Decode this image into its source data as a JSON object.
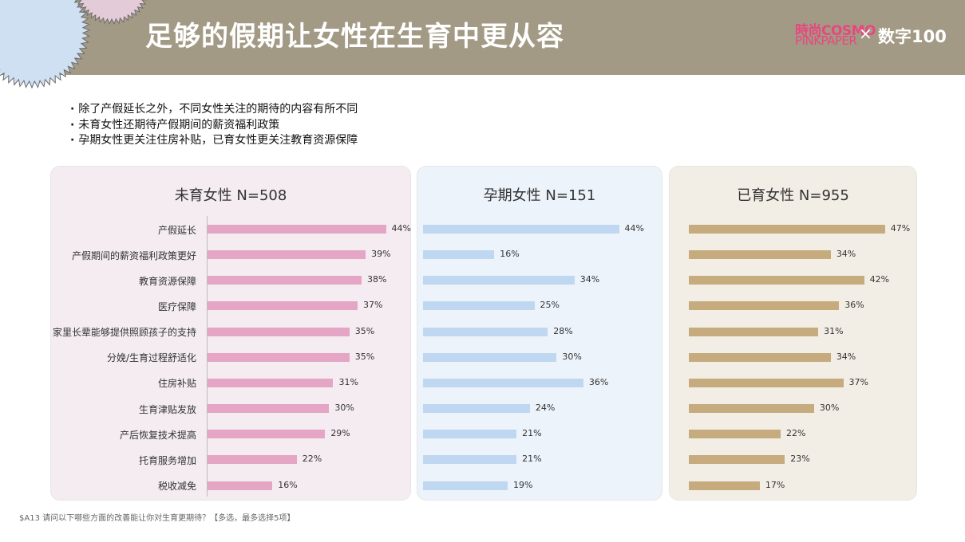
{
  "header": {
    "title": "足够的假期让女性在生育中更从容",
    "brand_cosmo_top": "時尚COSMO",
    "brand_cosmo_bottom": "PINKPAPER",
    "brand_times": "×",
    "brand_digit": "数字100"
  },
  "bullets": [
    "除了产假延长之外，不同女性关注的期待的内容有所不同",
    "未育女性还期待产假期间的薪资福利政策",
    "孕期女性更关注住房补贴，已育女性更关注教育资源保障"
  ],
  "footnote": "$A13 请问以下哪些方面的改善能让你对生育更期待？【多选，最多选择5项】",
  "colors": {
    "header_bg": "#a39a86",
    "panel_bgs": [
      "#f4ecf0",
      "#edf3fb",
      "#f3eee5"
    ],
    "bar_colors": [
      "#e5a6c6",
      "#bfd7f0",
      "#c6ab7f"
    ]
  },
  "chart_data": [
    {
      "type": "bar",
      "orientation": "horizontal",
      "title": "未育女性 N=508",
      "categories": [
        "产假延长",
        "产假期间的薪资福利政策更好",
        "教育资源保障",
        "医疗保障",
        "家里长辈能够提供照顾孩子的支持",
        "分娩/生育过程舒适化",
        "住房补贴",
        "生育津贴发放",
        "产后恢复技术提高",
        "托育服务增加",
        "税收减免"
      ],
      "values": [
        44,
        39,
        38,
        37,
        35,
        35,
        31,
        30,
        29,
        22,
        16
      ],
      "value_labels": [
        "44%",
        "39%",
        "38%",
        "37%",
        "35%",
        "35%",
        "31%",
        "30%",
        "29%",
        "22%",
        "16%"
      ],
      "unit": "%"
    },
    {
      "type": "bar",
      "orientation": "horizontal",
      "title": "孕期女性 N=151",
      "categories": [
        "产假延长",
        "产假期间的薪资福利政策更好",
        "教育资源保障",
        "医疗保障",
        "家里长辈能够提供照顾孩子的支持",
        "分娩/生育过程舒适化",
        "住房补贴",
        "生育津贴发放",
        "产后恢复技术提高",
        "托育服务增加",
        "税收减免"
      ],
      "values": [
        44,
        16,
        34,
        25,
        28,
        30,
        36,
        24,
        21,
        21,
        19
      ],
      "value_labels": [
        "44%",
        "16%",
        "34%",
        "25%",
        "28%",
        "30%",
        "36%",
        "24%",
        "21%",
        "21%",
        "19%"
      ],
      "unit": "%"
    },
    {
      "type": "bar",
      "orientation": "horizontal",
      "title": "已育女性 N=955",
      "categories": [
        "产假延长",
        "产假期间的薪资福利政策更好",
        "教育资源保障",
        "医疗保障",
        "家里长辈能够提供照顾孩子的支持",
        "分娩/生育过程舒适化",
        "住房补贴",
        "生育津贴发放",
        "产后恢复技术提高",
        "托育服务增加",
        "税收减免"
      ],
      "values": [
        47,
        34,
        42,
        36,
        31,
        34,
        37,
        30,
        22,
        23,
        17
      ],
      "value_labels": [
        "47%",
        "34%",
        "42%",
        "36%",
        "31%",
        "34%",
        "37%",
        "30%",
        "22%",
        "23%",
        "17%"
      ],
      "unit": "%"
    }
  ]
}
